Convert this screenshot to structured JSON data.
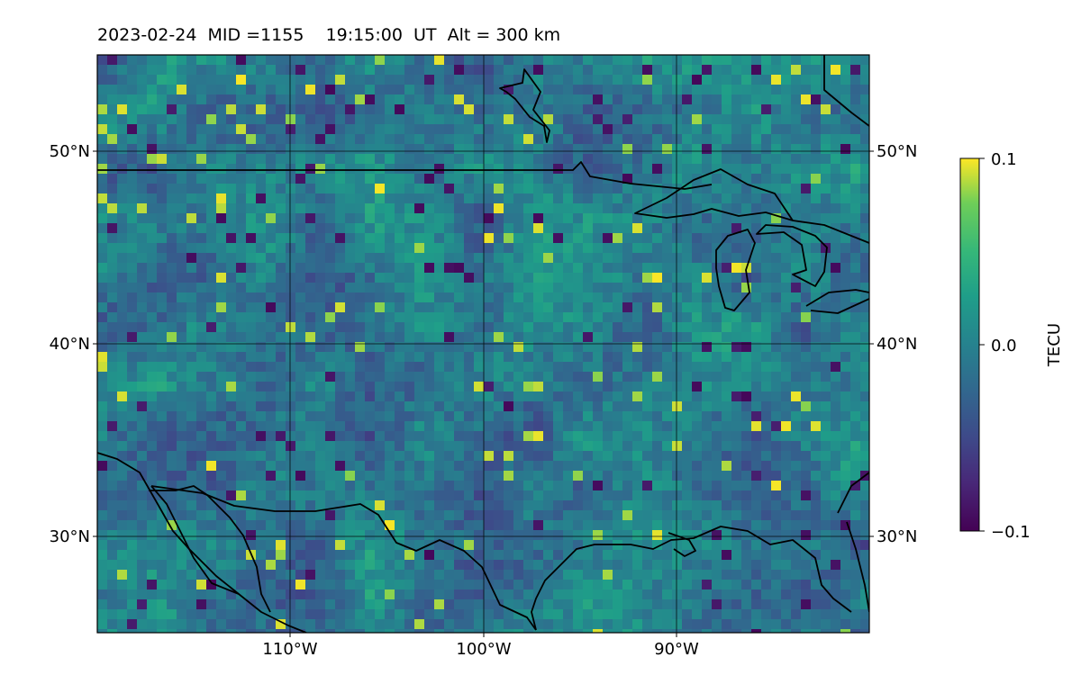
{
  "title": "2023-02-24  MID =1155    19:15:00  UT  Alt = 300 km",
  "map": {
    "lon_range": [
      -120,
      -80
    ],
    "lat_range": [
      25,
      55
    ],
    "lat_gridlines": [
      30,
      40,
      50
    ],
    "lon_gridlines": [
      -110,
      -100,
      -90
    ],
    "lat_tick_labels": [
      "30°N",
      "40°N",
      "50°N"
    ],
    "lon_tick_labels": [
      "110°W",
      "100°W",
      "90°W"
    ],
    "grid": true,
    "field": "TEC perturbation (viridis), noisy mosaic",
    "colormap": "viridis"
  },
  "colorbar": {
    "label": "TECU",
    "min": -0.1,
    "max": 0.1,
    "tick_labels": [
      "0.1",
      "0.0",
      "−0.1"
    ],
    "tick_values": [
      0.1,
      0.0,
      -0.1
    ]
  },
  "colors": {
    "viridis_low": "#440154",
    "viridis_mid": "#21918c",
    "viridis_high": "#fde725",
    "coastline": "#000000",
    "grid": "#000000"
  }
}
